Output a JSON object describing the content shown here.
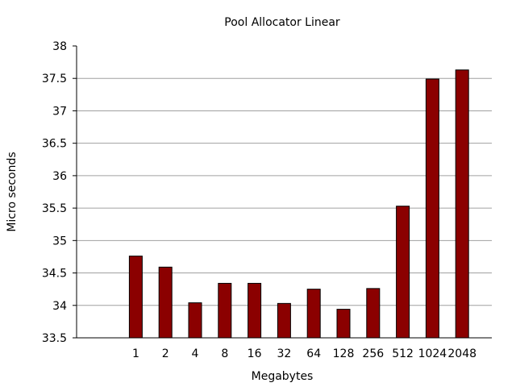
{
  "chart_data": {
    "type": "bar",
    "title": "Pool Allocator Linear",
    "xlabel": "Megabytes",
    "ylabel": "Micro seconds",
    "ylim": [
      33.5,
      38
    ],
    "yticks": [
      "33.5",
      "34",
      "34.5",
      "35",
      "35.5",
      "36",
      "36.5",
      "37",
      "37.5",
      "38"
    ],
    "categories": [
      "1",
      "2",
      "4",
      "8",
      "16",
      "32",
      "64",
      "128",
      "256",
      "512",
      "1024",
      "2048"
    ],
    "values": [
      34.76,
      34.59,
      34.04,
      34.34,
      34.34,
      34.03,
      34.25,
      33.94,
      34.26,
      35.53,
      37.49,
      37.63
    ],
    "grid": true,
    "bar_color": "#8b0000"
  }
}
